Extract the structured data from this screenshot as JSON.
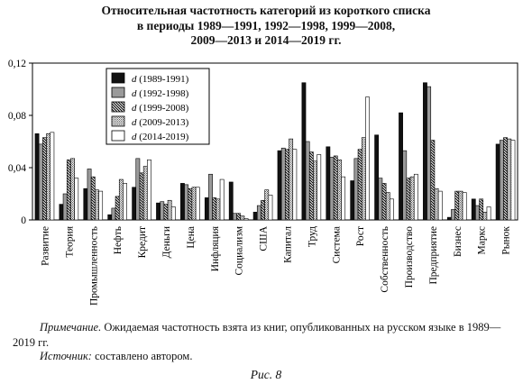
{
  "title_lines": [
    "Относительная частотность категорий из короткого списка",
    "в периоды 1989—1991, 1992—1998, 1999—2008,",
    "2009—2013 и 2014—2019 гг."
  ],
  "note": {
    "label": "Примечание.",
    "text": "Ожидаемая частотность взята из книг, опубликованных на русском языке в 1989—2019 гг."
  },
  "source": {
    "label": "Источник:",
    "text": "составлено автором."
  },
  "figure_caption": "Рис. 8",
  "chart_data": {
    "type": "bar",
    "title": "",
    "xlabel": "",
    "ylabel": "",
    "ylim": [
      0,
      0.12
    ],
    "yticks": [
      "0",
      "0,04",
      "0,08",
      "0,12"
    ],
    "grid": false,
    "legend_position": "top-left",
    "categories": [
      "Развитие",
      "Теория",
      "Промышленность",
      "Нефть",
      "Кредит",
      "Деньги",
      "Цена",
      "Инфляция",
      "Социализм",
      "США",
      "Капитал",
      "Труд",
      "Система",
      "Рост",
      "Собственность",
      "Производство",
      "Предприятие",
      "Бизнес",
      "Маркс",
      "Рынок"
    ],
    "series": [
      {
        "name": "d (1989-1991)",
        "pattern": "black",
        "values": [
          0.066,
          0.012,
          0.024,
          0.004,
          0.025,
          0.013,
          0.028,
          0.017,
          0.029,
          0.006,
          0.053,
          0.105,
          0.056,
          0.03,
          0.065,
          0.082,
          0.105,
          0.002,
          0.016,
          0.058
        ]
      },
      {
        "name": "d (1992-1998)",
        "pattern": "gray",
        "values": [
          0.058,
          0.02,
          0.039,
          0.009,
          0.047,
          0.014,
          0.027,
          0.035,
          0.005,
          0.011,
          0.055,
          0.06,
          0.048,
          0.047,
          0.032,
          0.053,
          0.102,
          0.008,
          0.011,
          0.061
        ]
      },
      {
        "name": "d (1999-2008)",
        "pattern": "hatch",
        "values": [
          0.063,
          0.046,
          0.033,
          0.018,
          0.036,
          0.012,
          0.024,
          0.017,
          0.005,
          0.015,
          0.054,
          0.052,
          0.049,
          0.054,
          0.028,
          0.032,
          0.061,
          0.022,
          0.016,
          0.063
        ]
      },
      {
        "name": "d (2009-2013)",
        "pattern": "dots",
        "values": [
          0.066,
          0.047,
          0.023,
          0.031,
          0.041,
          0.015,
          0.025,
          0.016,
          0.003,
          0.023,
          0.062,
          0.045,
          0.046,
          0.063,
          0.021,
          0.033,
          0.024,
          0.022,
          0.006,
          0.062
        ]
      },
      {
        "name": "d (2014-2019)",
        "pattern": "white",
        "values": [
          0.067,
          0.032,
          0.022,
          0.028,
          0.046,
          0.01,
          0.025,
          0.031,
          0.001,
          0.019,
          0.054,
          0.05,
          0.033,
          0.094,
          0.016,
          0.035,
          0.022,
          0.021,
          0.01,
          0.061
        ]
      }
    ]
  }
}
